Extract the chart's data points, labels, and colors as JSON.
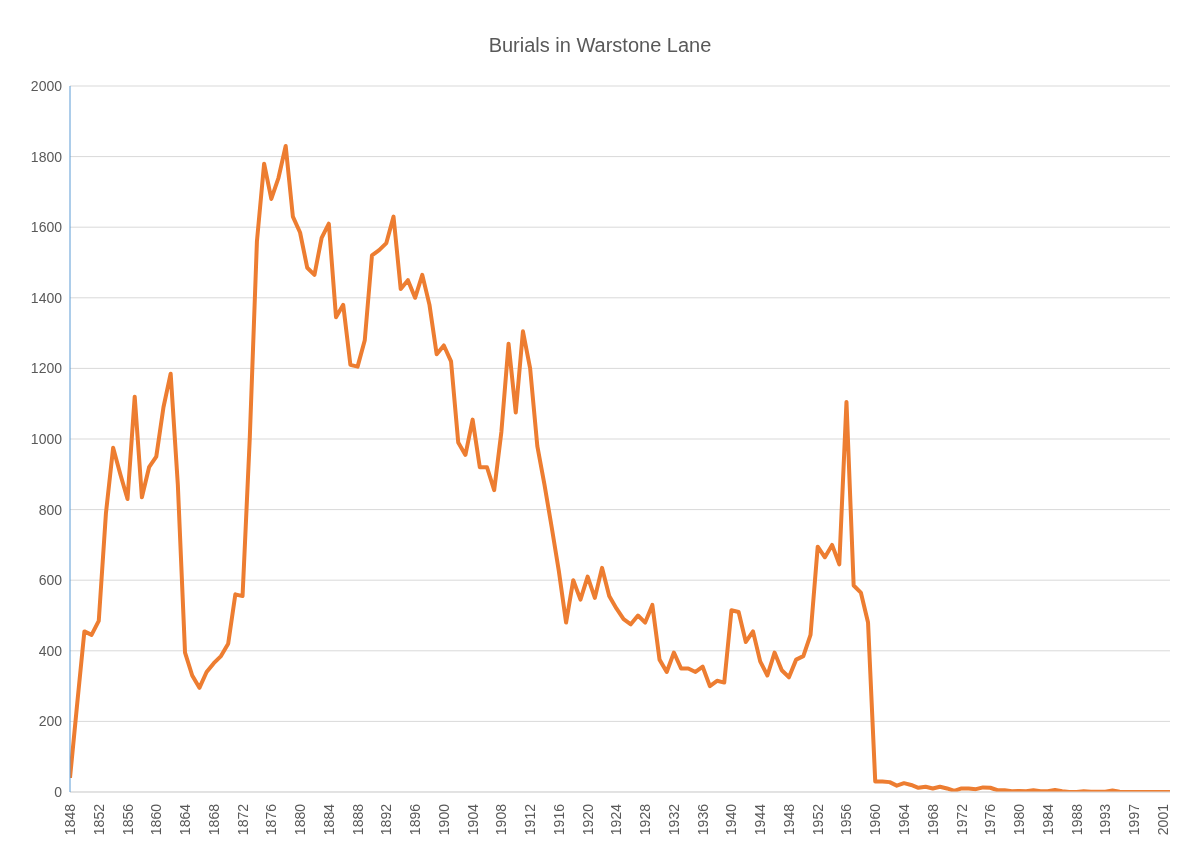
{
  "chart_data": {
    "type": "line",
    "title": "Burials in Warstone Lane",
    "categories": [
      "1848",
      null,
      null,
      null,
      "1852",
      null,
      null,
      null,
      "1856",
      null,
      null,
      null,
      "1860",
      null,
      null,
      null,
      "1864",
      null,
      null,
      null,
      "1868",
      null,
      null,
      null,
      "1872",
      null,
      null,
      null,
      "1876",
      null,
      null,
      null,
      "1880",
      null,
      null,
      null,
      "1884",
      null,
      null,
      null,
      "1888",
      null,
      null,
      null,
      "1892",
      null,
      null,
      null,
      "1896",
      null,
      null,
      null,
      "1900",
      null,
      null,
      null,
      "1904",
      null,
      null,
      null,
      "1908",
      null,
      null,
      null,
      "1912",
      null,
      null,
      null,
      "1916",
      null,
      null,
      null,
      "1920",
      null,
      null,
      null,
      "1924",
      null,
      null,
      null,
      "1928",
      null,
      null,
      null,
      "1932",
      null,
      null,
      null,
      "1936",
      null,
      null,
      null,
      "1940",
      null,
      null,
      null,
      "1944",
      null,
      null,
      null,
      "1948",
      null,
      null,
      null,
      "1952",
      null,
      null,
      null,
      "1956",
      null,
      null,
      null,
      "1960",
      null,
      null,
      null,
      "1964",
      null,
      null,
      null,
      "1968",
      null,
      null,
      null,
      "1972",
      null,
      null,
      null,
      "1976",
      null,
      null,
      null,
      "1980",
      null,
      null,
      null,
      "1984",
      null,
      null,
      null,
      "1988",
      null,
      null,
      null,
      "1993",
      null,
      null,
      null,
      "1997",
      null,
      null,
      null,
      "2001",
      null
    ],
    "series": [
      {
        "color": "#ed7d31",
        "values": [
          40,
          250,
          455,
          445,
          485,
          790,
          975,
          900,
          830,
          1120,
          835,
          920,
          950,
          1090,
          1185,
          870,
          395,
          330,
          295,
          340,
          365,
          385,
          420,
          560,
          555,
          1000,
          1560,
          1780,
          1680,
          1740,
          1830,
          1630,
          1585,
          1485,
          1465,
          1570,
          1610,
          1345,
          1380,
          1210,
          1205,
          1280,
          1520,
          1535,
          1555,
          1630,
          1425,
          1450,
          1400,
          1465,
          1380,
          1240,
          1265,
          1220,
          990,
          955,
          1055,
          920,
          920,
          855,
          1020,
          1270,
          1075,
          1305,
          1200,
          980,
          870,
          750,
          625,
          480,
          600,
          545,
          610,
          550,
          635,
          555,
          520,
          490,
          475,
          500,
          480,
          530,
          375,
          340,
          395,
          350,
          350,
          340,
          355,
          300,
          315,
          310,
          515,
          510,
          425,
          455,
          370,
          330,
          395,
          345,
          325,
          375,
          385,
          445,
          695,
          665,
          700,
          645,
          1105,
          585,
          565,
          480,
          30,
          30,
          28,
          18,
          25,
          20,
          12,
          15,
          10,
          15,
          10,
          3,
          10,
          10,
          8,
          13,
          12,
          5,
          5,
          2,
          3,
          2,
          5,
          2,
          2,
          6,
          2,
          0,
          0,
          2,
          1,
          1,
          1,
          4,
          1,
          0,
          0,
          0,
          0,
          0,
          0,
          0
        ]
      }
    ],
    "ylim": [
      0,
      2000
    ],
    "yticks": [
      0,
      200,
      400,
      600,
      800,
      1000,
      1200,
      1400,
      1600,
      1800,
      2000
    ],
    "grid": "y",
    "marker": "none",
    "line_style": "solid",
    "legend": false
  }
}
